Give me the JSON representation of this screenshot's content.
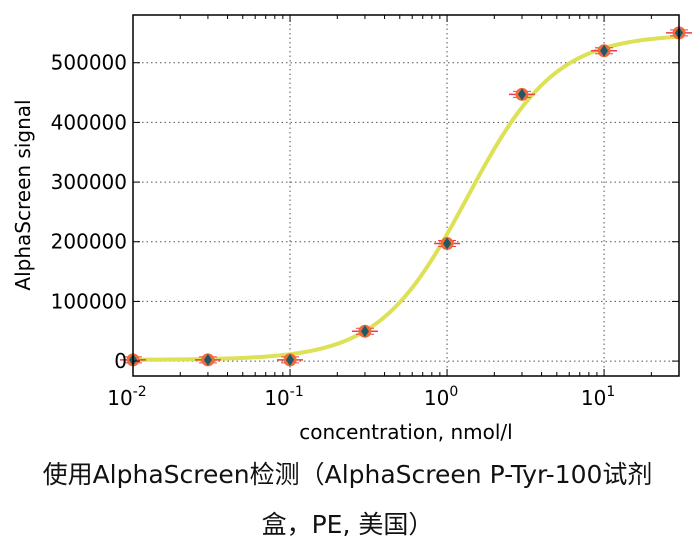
{
  "chart_data": {
    "type": "scatter",
    "xscale": "log",
    "xlabel": "concentration, nmol/l",
    "ylabel": "AlphaScreen signal",
    "xlim": [
      0.01,
      30
    ],
    "ylim": [
      -25000,
      580000
    ],
    "grid": true,
    "x_ticks": [
      {
        "value": 0.01,
        "base": "10",
        "exp": "-2"
      },
      {
        "value": 0.1,
        "base": "10",
        "exp": "-1"
      },
      {
        "value": 1,
        "base": "10",
        "exp": "0"
      },
      {
        "value": 10,
        "base": "10",
        "exp": "1"
      }
    ],
    "y_ticks": [
      {
        "value": 0,
        "label": "0"
      },
      {
        "value": 100000,
        "label": "100000"
      },
      {
        "value": 200000,
        "label": "200000"
      },
      {
        "value": 300000,
        "label": "300000"
      },
      {
        "value": 400000,
        "label": "400000"
      },
      {
        "value": 500000,
        "label": "500000"
      }
    ],
    "points": [
      {
        "x": 0.01,
        "y": 2000
      },
      {
        "x": 0.03,
        "y": 2000
      },
      {
        "x": 0.1,
        "y": 2000
      },
      {
        "x": 0.3,
        "y": 50000
      },
      {
        "x": 1,
        "y": 197000
      },
      {
        "x": 3,
        "y": 447000
      },
      {
        "x": 10,
        "y": 520000
      },
      {
        "x": 30,
        "y": 550000
      }
    ],
    "fit": {
      "bottom": 2000,
      "top": 548000,
      "ec50": 1.35,
      "hill": 1.55
    },
    "colors": {
      "fit_line": "#dde155",
      "marker_outer": "#f06a3c",
      "marker_inner": "#1d5a66",
      "errorbar": "#e8404a",
      "grid": "#555555"
    }
  },
  "caption": {
    "line1": "使用AlphaScreen检测（AlphaScreen P-Tyr-100试剂",
    "line2": "盒，PE, 美国）"
  }
}
